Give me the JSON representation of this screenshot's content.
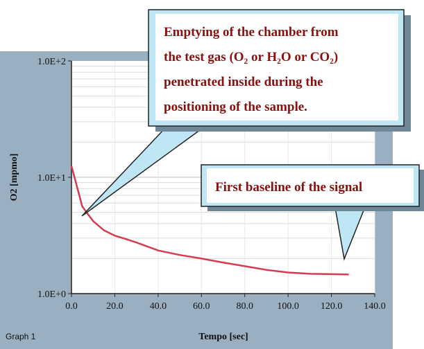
{
  "chart_data": {
    "type": "line",
    "graph_name": "Graph 1",
    "xlabel": "Tempo [sec]",
    "ylabel": "O2 [mpmo]",
    "xlim": [
      0,
      140
    ],
    "ylim": [
      1,
      100
    ],
    "y_scale": "log",
    "x_ticks": [
      "0.0",
      "20.0",
      "40.0",
      "60.0",
      "80.0",
      "100.0",
      "120.0",
      "140.0"
    ],
    "y_ticks": [
      "1.0E+2",
      "1.0E+1",
      "1.0E+0"
    ],
    "grid": true,
    "series": [
      {
        "color": "#d83a4e",
        "x": [
          0,
          5,
          10,
          15,
          20,
          25,
          30,
          40,
          50,
          60,
          70,
          80,
          90,
          100,
          110,
          120,
          128
        ],
        "y": [
          12.5,
          5.6,
          4.2,
          3.5,
          3.15,
          2.95,
          2.75,
          2.35,
          2.15,
          2.0,
          1.85,
          1.72,
          1.6,
          1.52,
          1.48,
          1.47,
          1.46
        ]
      }
    ],
    "annotations": [
      {
        "text_lines": [
          "Emptying of the chamber from",
          "the test gas (O₂ or H₂O or CO₂)",
          "penetrated  inside  during  the",
          "positioning of the sample."
        ]
      },
      {
        "text": "First baseline of the signal"
      }
    ]
  }
}
